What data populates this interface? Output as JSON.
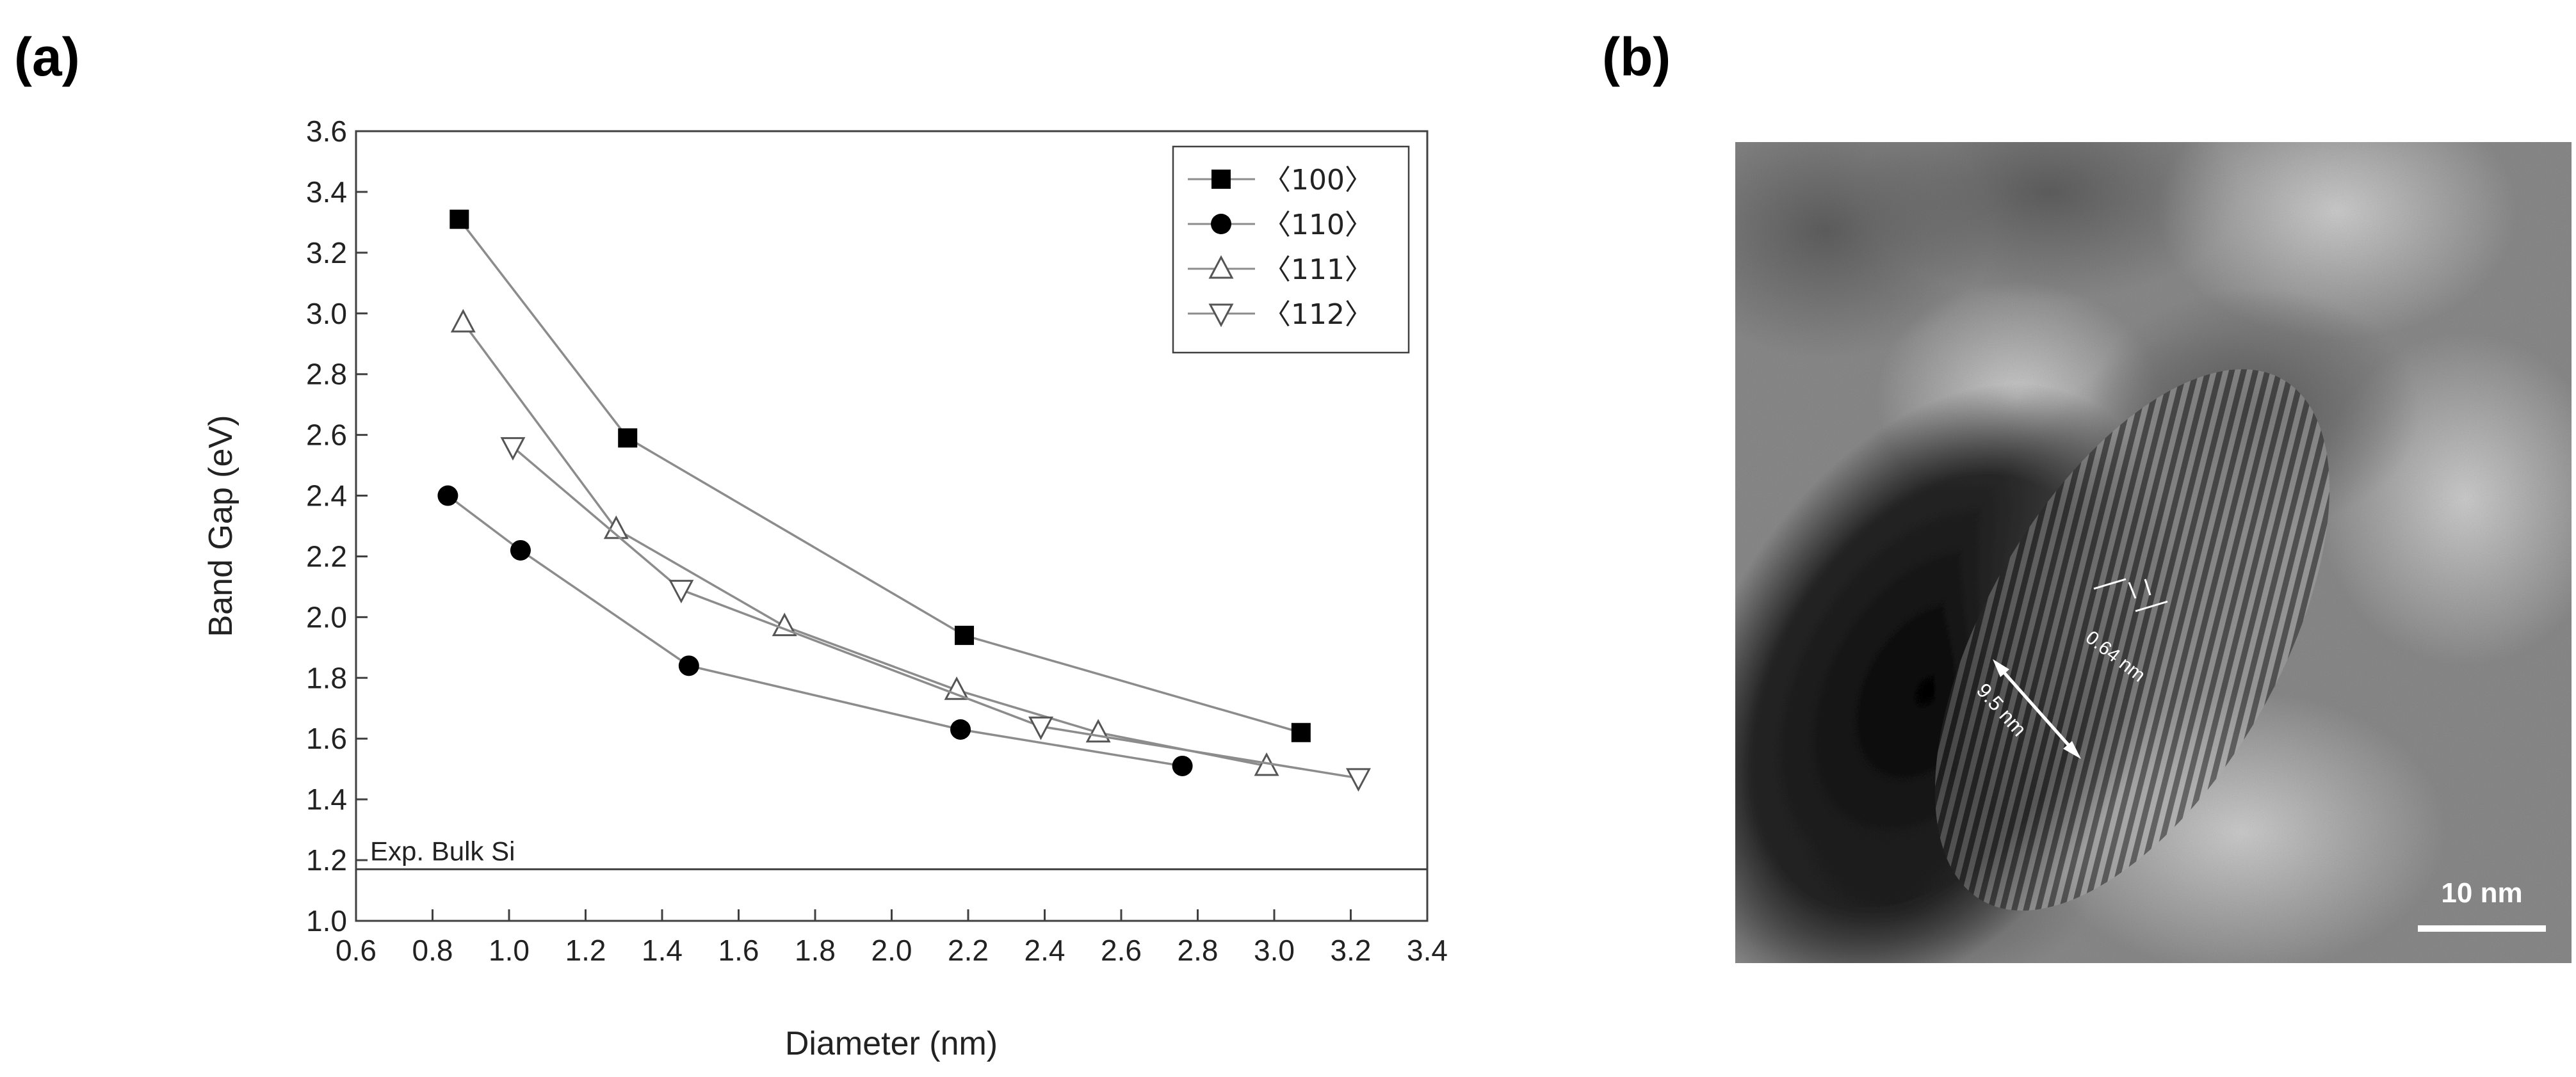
{
  "panels": {
    "a_label": "(a)",
    "b_label": "(b)"
  },
  "chart_data": {
    "type": "line",
    "xlabel": "Diameter (nm)",
    "ylabel": "Band Gap (eV)",
    "xlim": [
      0.6,
      3.4
    ],
    "ylim": [
      1.0,
      3.6
    ],
    "x_ticks": [
      "0.6",
      "0.8",
      "1.0",
      "1.2",
      "1.4",
      "1.6",
      "1.8",
      "2.0",
      "2.2",
      "2.4",
      "2.6",
      "2.8",
      "3.0",
      "3.2",
      "3.4"
    ],
    "y_ticks": [
      "1.0",
      "1.2",
      "1.4",
      "1.6",
      "1.8",
      "2.0",
      "2.2",
      "2.4",
      "2.6",
      "2.8",
      "3.0",
      "3.2",
      "3.4",
      "3.6"
    ],
    "grid": false,
    "legend_position": "top-right",
    "series": [
      {
        "name": "〈100〉",
        "marker": "square-filled",
        "x": [
          0.87,
          1.31,
          2.19,
          3.07
        ],
        "y": [
          3.31,
          2.59,
          1.94,
          1.62
        ]
      },
      {
        "name": "〈110〉",
        "marker": "circle-filled",
        "x": [
          0.84,
          1.03,
          1.47,
          2.18,
          2.76
        ],
        "y": [
          2.4,
          2.22,
          1.84,
          1.63,
          1.51
        ]
      },
      {
        "name": "〈111〉",
        "marker": "triangle-up-open",
        "x": [
          0.88,
          1.28,
          1.72,
          2.17,
          2.54,
          2.98
        ],
        "y": [
          2.97,
          2.29,
          1.97,
          1.76,
          1.62,
          1.51
        ]
      },
      {
        "name": "〈112〉",
        "marker": "triangle-down-open",
        "x": [
          1.01,
          1.45,
          2.39,
          3.22
        ],
        "y": [
          2.56,
          2.09,
          1.64,
          1.47
        ]
      }
    ],
    "reference_lines": [
      {
        "label": "Exp. Bulk Si",
        "y": 1.17
      }
    ]
  },
  "micrograph": {
    "scale_bar_label": "10 nm",
    "lattice_spacing_label": "0.64 nm",
    "width_label": "9.5 nm",
    "background_color": "#8a8a8a"
  },
  "colors": {
    "series_line": "#8c8c8c",
    "marker": "#000000",
    "axis": "#404040"
  }
}
